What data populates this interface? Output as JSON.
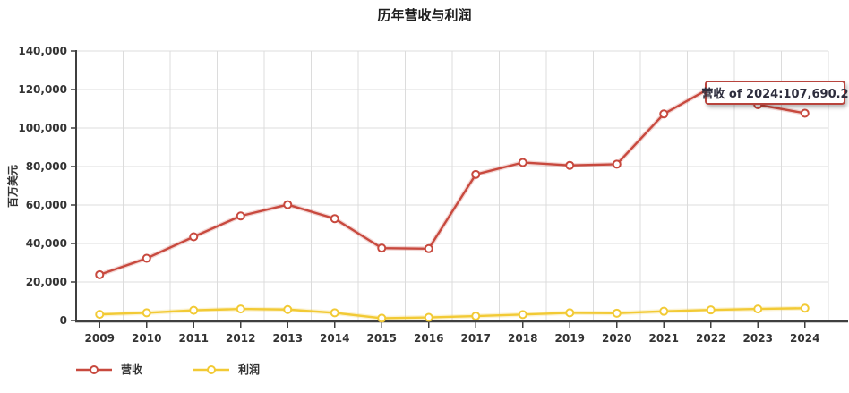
{
  "colors": {
    "revenue": "#c8493e",
    "profit": "#f2ca35",
    "grid": "#dcdcdc",
    "axis": "#3f3f3f",
    "tooltip_border": "#b8443d",
    "tooltip_text": "#2d2d3d",
    "marker_fill": "#ffffff"
  },
  "chart_data": {
    "type": "line",
    "title": "历年营收与利润",
    "xlabel": "",
    "ylabel": "百万美元",
    "categories": [
      "2009",
      "2010",
      "2011",
      "2012",
      "2013",
      "2014",
      "2015",
      "2016",
      "2017",
      "2018",
      "2019",
      "2020",
      "2021",
      "2022",
      "2023",
      "2024"
    ],
    "series": [
      {
        "name": "营收",
        "color": "#c8493e",
        "values": [
          23800,
          32300,
          43500,
          54300,
          60200,
          52900,
          37600,
          37300,
          75900,
          82100,
          80600,
          81200,
          107300,
          121000,
          112100,
          107690.2
        ]
      },
      {
        "name": "利润",
        "color": "#f2ca35",
        "values": [
          3200,
          4000,
          5300,
          6000,
          5700,
          4000,
          1200,
          1600,
          2300,
          3100,
          4000,
          3800,
          4800,
          5500,
          6000,
          6400
        ]
      }
    ],
    "ylim": [
      0,
      140000
    ],
    "y_ticks": [
      {
        "value": 0,
        "label": "0"
      },
      {
        "value": 20000,
        "label": "20,000"
      },
      {
        "value": 40000,
        "label": "40,000"
      },
      {
        "value": 60000,
        "label": "60,000"
      },
      {
        "value": 80000,
        "label": "80,000"
      },
      {
        "value": 100000,
        "label": "100,000"
      },
      {
        "value": 120000,
        "label": "120,000"
      },
      {
        "value": 140000,
        "label": "140,000"
      }
    ],
    "grid": true,
    "legend_position": "bottom-left",
    "marker": "open-circle",
    "tooltip": {
      "series": "营收",
      "year": "2024",
      "value": 107690.2,
      "text": "营收 of 2024:107,690.2"
    }
  }
}
